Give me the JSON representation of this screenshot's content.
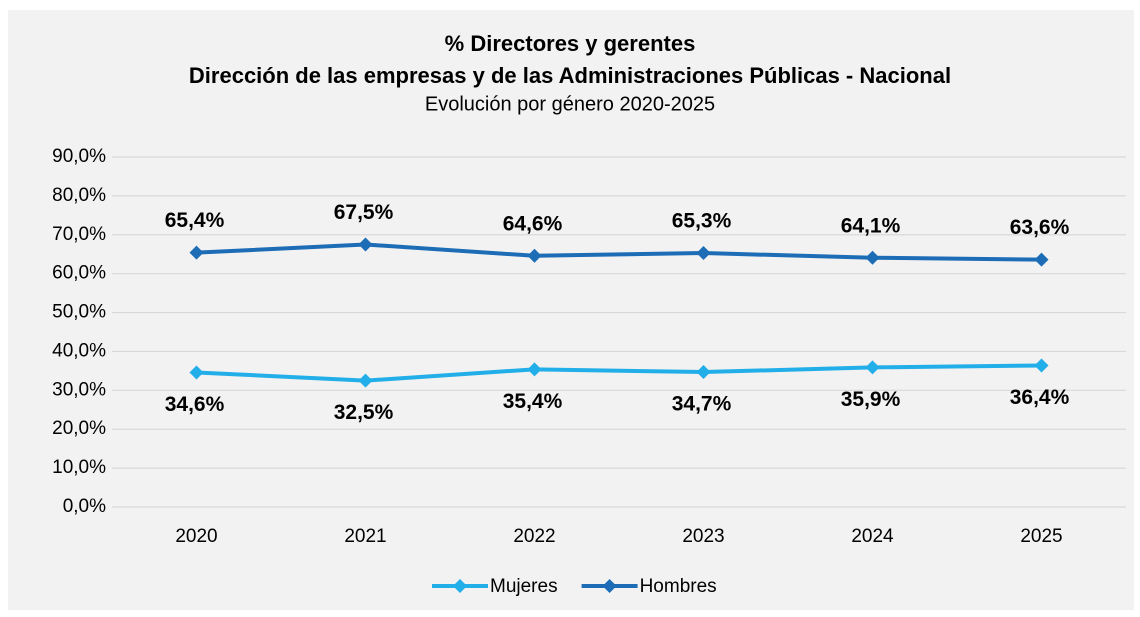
{
  "chart_data": {
    "type": "line",
    "title": "% Directores y gerentes",
    "subtitle": "Dirección de las empresas y de las Administraciones Públicas - Nacional",
    "subtitle_2": "Evolución por género 2020-2025",
    "categories": [
      "2020",
      "2021",
      "2022",
      "2023",
      "2024",
      "2025"
    ],
    "series": [
      {
        "name": "Mujeres",
        "color": "#22aee8",
        "values": [
          34.6,
          32.5,
          35.4,
          34.7,
          35.9,
          36.4
        ],
        "value_labels": [
          "34,6%",
          "32,5%",
          "35,4%",
          "34,7%",
          "35,9%",
          "36,4%"
        ]
      },
      {
        "name": "Hombres",
        "color": "#1c6db6",
        "values": [
          65.4,
          67.5,
          64.6,
          65.3,
          64.1,
          63.6
        ],
        "value_labels": [
          "65,4%",
          "67,5%",
          "64,6%",
          "65,3%",
          "64,1%",
          "63,6%"
        ]
      }
    ],
    "ylim": [
      0,
      90
    ],
    "yticks": [
      {
        "value": 0,
        "label": "0,0%"
      },
      {
        "value": 10,
        "label": "10,0%"
      },
      {
        "value": 20,
        "label": "20,0%"
      },
      {
        "value": 30,
        "label": "30,0%"
      },
      {
        "value": 40,
        "label": "40,0%"
      },
      {
        "value": 50,
        "label": "50,0%"
      },
      {
        "value": 60,
        "label": "60,0%"
      },
      {
        "value": 70,
        "label": "70,0%"
      },
      {
        "value": 80,
        "label": "80,0%"
      },
      {
        "value": 90,
        "label": "90,0%"
      }
    ],
    "grid": true,
    "legend": "bottom"
  }
}
